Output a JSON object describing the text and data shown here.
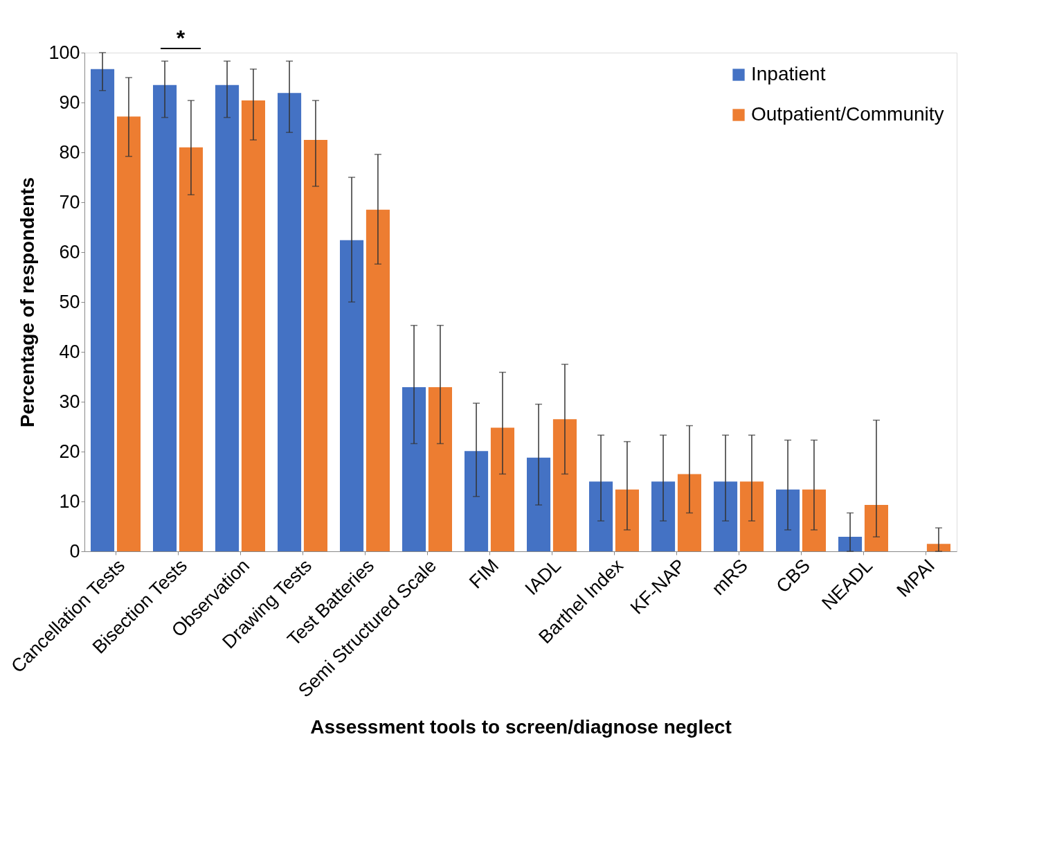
{
  "chart_data": {
    "type": "bar",
    "xlabel": "Assessment tools to screen/diagnose neglect",
    "ylabel": "Percentage of respondents",
    "categories": [
      "Cancellation Tests",
      "Bisection Tests",
      "Observation",
      "Drawing Tests",
      "Test Batteries",
      "Semi Structured Scale",
      "FIM",
      "IADL",
      "Barthel Index",
      "KF-NAP",
      "mRS",
      "CBS",
      "NEADL",
      "MPAI"
    ],
    "series": [
      {
        "name": "Inpatient",
        "color": "#4472c4",
        "values": [
          96.7,
          93.5,
          93.5,
          91.9,
          62.4,
          32.9,
          20.1,
          18.8,
          14,
          14,
          14,
          12.4,
          2.9,
          null
        ],
        "errors": [
          [
            92.4,
            100
          ],
          [
            87,
            98.3
          ],
          [
            87,
            98.3
          ],
          [
            84,
            98.3
          ],
          [
            50,
            75
          ],
          [
            21.6,
            45.3
          ],
          [
            11,
            29.7
          ],
          [
            9.3,
            29.5
          ],
          [
            6.1,
            23.3
          ],
          [
            6.1,
            23.3
          ],
          [
            6.1,
            23.3
          ],
          [
            4.3,
            22.3
          ],
          [
            0,
            7.7
          ],
          null
        ]
      },
      {
        "name": "Outpatient/Community",
        "color": "#ed7d31",
        "values": [
          87.2,
          81,
          90.4,
          82.5,
          68.5,
          32.9,
          24.8,
          26.5,
          12.4,
          15.5,
          14,
          12.4,
          9.3,
          1.5
        ],
        "errors": [
          [
            79.2,
            95
          ],
          [
            71.5,
            90.4
          ],
          [
            82.5,
            96.7
          ],
          [
            73.2,
            90.4
          ],
          [
            57.6,
            79.6
          ],
          [
            21.6,
            45.3
          ],
          [
            15.5,
            35.9
          ],
          [
            15.5,
            37.5
          ],
          [
            4.3,
            22
          ],
          [
            7.7,
            25.2
          ],
          [
            6.1,
            23.3
          ],
          [
            4.3,
            22.3
          ],
          [
            2.9,
            26.3
          ],
          [
            0,
            4.7
          ]
        ]
      }
    ],
    "ylim": [
      0,
      100
    ],
    "yticks": [
      0,
      10,
      20,
      30,
      40,
      50,
      60,
      70,
      80,
      90,
      100
    ],
    "grid": false,
    "legend": "top right",
    "annotations": [
      "*"
    ]
  }
}
